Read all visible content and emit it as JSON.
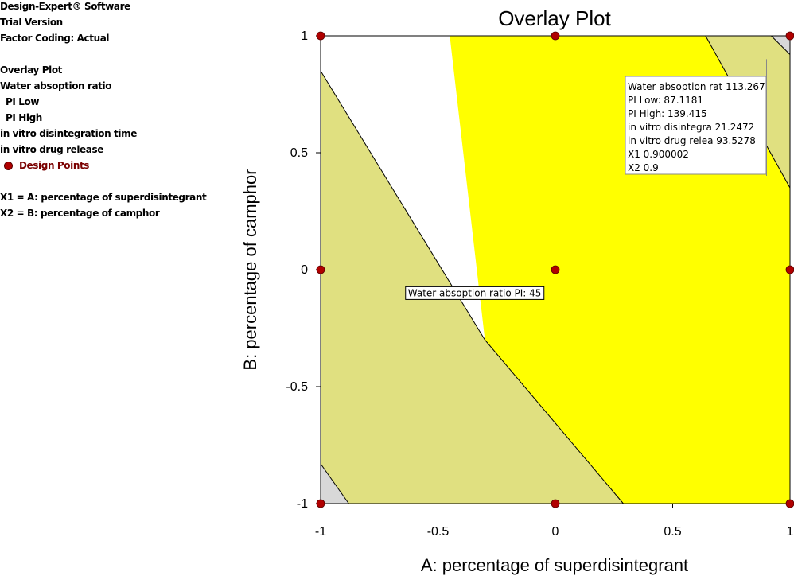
{
  "sidebar": {
    "lines": [
      "Design-Expert® Software",
      "Trial Version",
      "Factor Coding: Actual",
      "",
      "Overlay Plot",
      "Water absoption ratio",
      "PI Low",
      "PI High",
      "in vitro disintegration time",
      "in vitro drug release",
      "Design Points",
      "",
      "X1 = A: percentage of superdisintegrant",
      "X2 = B: percentage of camphor"
    ]
  },
  "colors": {
    "feasible": "#ffff00",
    "infeasible": "#e0e080",
    "corner": "#d8d8d8",
    "design_point": "#b00000"
  },
  "chart_data": {
    "type": "contour",
    "title": "Overlay Plot",
    "xlabel": "A: percentage of superdisintegrant",
    "ylabel": "B: percentage of camphor",
    "xlim": [
      -1,
      1
    ],
    "ylim": [
      -1,
      1
    ],
    "xticks": [
      -1,
      -0.5,
      0,
      0.5,
      1
    ],
    "yticks": [
      -1,
      -0.5,
      0,
      0.5,
      1
    ],
    "xtick_labels": [
      "-1",
      "-0.5",
      "0",
      "0.5",
      "1"
    ],
    "ytick_labels": [
      "-1",
      "-0.5",
      "0",
      "0.5",
      "1"
    ],
    "regions": [
      {
        "kind": "feasible",
        "vertices": [
          [
            -0.45,
            1
          ],
          [
            0.64,
            1
          ],
          [
            1,
            0.35
          ],
          [
            1,
            -1
          ],
          [
            0.29,
            -1
          ],
          [
            -0.3,
            -0.3
          ]
        ]
      },
      {
        "kind": "infeasible",
        "vertices": [
          [
            -1,
            -0.83
          ],
          [
            -0.88,
            -1
          ],
          [
            0.29,
            -1
          ],
          [
            -0.3,
            -0.3
          ],
          [
            -1,
            0.85
          ]
        ]
      },
      {
        "kind": "infeasible",
        "vertices": [
          [
            0.64,
            1
          ],
          [
            0.92,
            1
          ],
          [
            1,
            0.92
          ],
          [
            1,
            0.35
          ]
        ]
      },
      {
        "kind": "corner",
        "vertices": [
          [
            -1,
            -1
          ],
          [
            -0.88,
            -1
          ],
          [
            -1,
            -0.83
          ]
        ]
      },
      {
        "kind": "corner",
        "vertices": [
          [
            0.92,
            1
          ],
          [
            1,
            1
          ],
          [
            1,
            0.92
          ]
        ]
      }
    ],
    "boundaries": [
      [
        [
          -1,
          0.85
        ],
        [
          -0.3,
          -0.3
        ],
        [
          0.29,
          -1
        ]
      ],
      [
        [
          0.64,
          1
        ],
        [
          1,
          0.35
        ]
      ],
      [
        [
          0.92,
          1
        ],
        [
          1,
          0.92
        ]
      ],
      [
        [
          -1,
          -0.83
        ],
        [
          -0.88,
          -1
        ]
      ]
    ],
    "design_points": [
      [
        -1,
        1
      ],
      [
        0,
        1
      ],
      [
        1,
        1
      ],
      [
        -1,
        0
      ],
      [
        0,
        0
      ],
      [
        1,
        0
      ],
      [
        -1,
        -1
      ],
      [
        0,
        -1
      ],
      [
        1,
        -1
      ]
    ],
    "annotations": {
      "contour_label": {
        "text": "Water absoption ratio PI:  45",
        "x": -0.35,
        "y": -0.1
      },
      "flag": {
        "x": 0.9,
        "y": 0.9,
        "lines": [
          "Water absoption rat  113.267",
          "  PI Low:   87.1181",
          "  PI High:   139.415",
          "in vitro disintegra  21.2472",
          "in vitro drug relea  93.5278",
          "X1  0.900002",
          "X2  0.9"
        ]
      }
    }
  }
}
